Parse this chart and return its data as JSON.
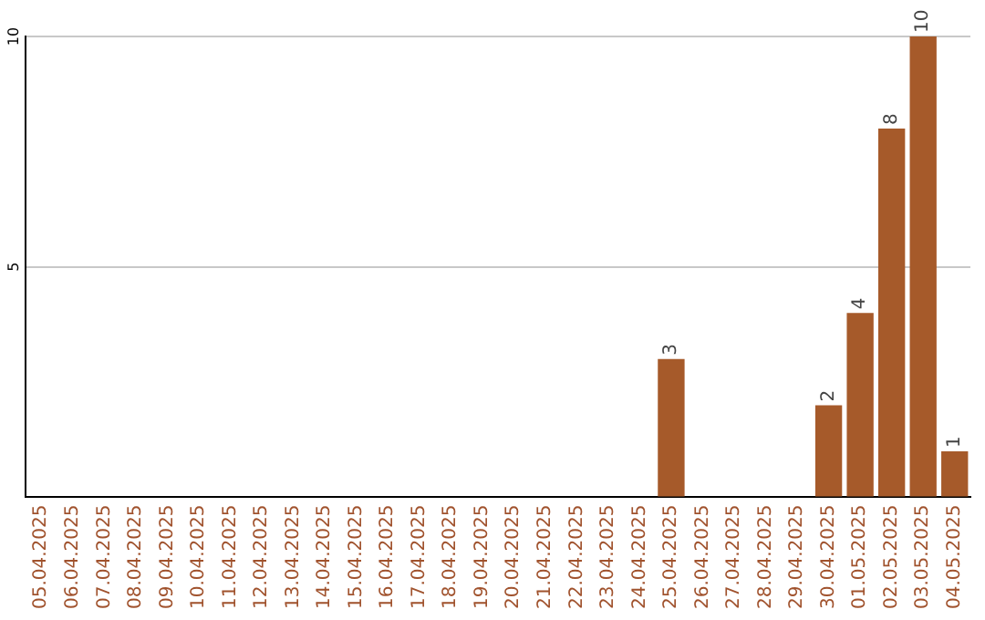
{
  "chart_data": {
    "type": "bar",
    "categories": [
      "05.04.2025",
      "06.04.2025",
      "07.04.2025",
      "08.04.2025",
      "09.04.2025",
      "10.04.2025",
      "11.04.2025",
      "12.04.2025",
      "13.04.2025",
      "14.04.2025",
      "15.04.2025",
      "16.04.2025",
      "17.04.2025",
      "18.04.2025",
      "19.04.2025",
      "20.04.2025",
      "21.04.2025",
      "22.04.2025",
      "23.04.2025",
      "24.04.2025",
      "25.04.2025",
      "26.04.2025",
      "27.04.2025",
      "28.04.2025",
      "29.04.2025",
      "30.04.2025",
      "01.05.2025",
      "02.05.2025",
      "03.05.2025",
      "04.05.2025"
    ],
    "values": [
      0,
      0,
      0,
      0,
      0,
      0,
      0,
      0,
      0,
      0,
      0,
      0,
      0,
      0,
      0,
      0,
      0,
      0,
      0,
      0,
      3,
      0,
      0,
      0,
      0,
      2,
      4,
      8,
      10,
      1
    ],
    "value_labels": [
      null,
      null,
      null,
      null,
      null,
      null,
      null,
      null,
      null,
      null,
      null,
      null,
      null,
      null,
      null,
      null,
      null,
      null,
      null,
      null,
      "3",
      null,
      null,
      null,
      null,
      "2",
      "4",
      "8",
      "10",
      "1"
    ],
    "color": "#a65a2a",
    "ylim": [
      0,
      10
    ],
    "yticks": [
      {
        "value": 0,
        "label": null
      },
      5,
      10
    ],
    "grid": "y",
    "legend": false
  }
}
